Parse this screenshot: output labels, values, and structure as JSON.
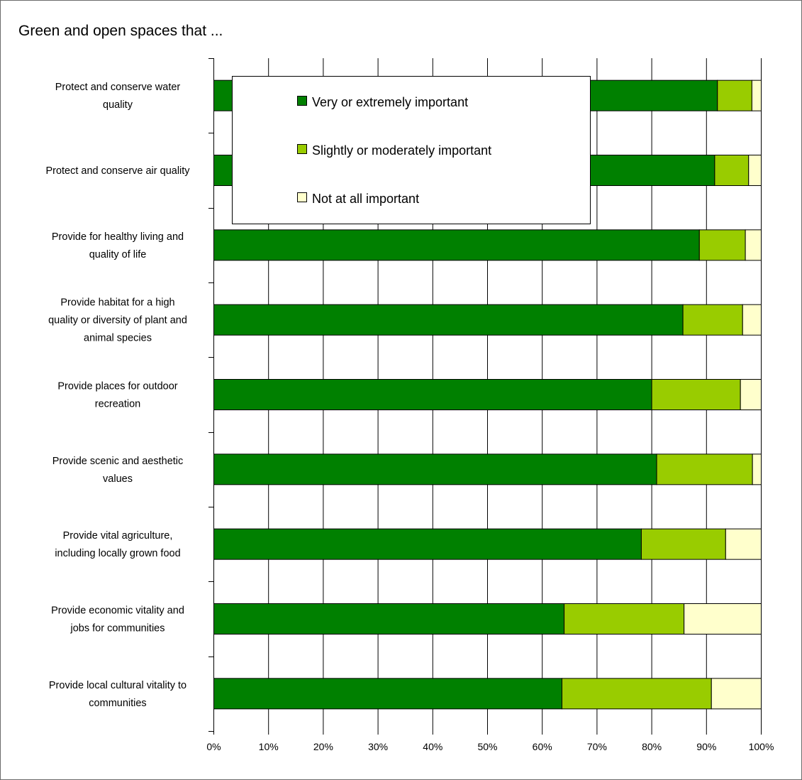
{
  "chart_data": {
    "type": "bar",
    "orientation": "horizontal",
    "stacked": "percent",
    "title": "Green and open spaces that ...",
    "xlabel": "",
    "ylabel": "",
    "xlim": [
      0,
      100
    ],
    "x_ticks": [
      "0%",
      "10%",
      "20%",
      "30%",
      "40%",
      "50%",
      "60%",
      "70%",
      "80%",
      "90%",
      "100%"
    ],
    "grid": "vertical",
    "legend_position": "inside-top-left",
    "categories": [
      [
        "Protect and conserve water",
        "quality"
      ],
      [
        "Protect and conserve air quality"
      ],
      [
        "Provide for healthy living and",
        "quality of life"
      ],
      [
        "Provide habitat for a high",
        "quality or diversity of plant and",
        "animal species"
      ],
      [
        "Provide places for outdoor",
        "recreation"
      ],
      [
        "Provide scenic and aesthetic",
        "values"
      ],
      [
        "Provide vital agriculture,",
        "including locally grown food"
      ],
      [
        "Provide economic vitality and",
        "jobs for communities"
      ],
      [
        "Provide local cultural vitality to",
        "communities"
      ]
    ],
    "series": [
      {
        "name": "Very or extremely important",
        "color": "#008000",
        "values": [
          92.0,
          91.5,
          88.7,
          85.7,
          80.0,
          80.9,
          78.1,
          64.0,
          63.6
        ]
      },
      {
        "name": "Slightly or moderately important",
        "color": "#99cc00",
        "values": [
          6.3,
          6.2,
          8.4,
          10.9,
          16.2,
          17.5,
          15.4,
          21.9,
          27.3
        ]
      },
      {
        "name": "Not at all important",
        "color": "#ffffcc",
        "values": [
          1.7,
          2.3,
          2.9,
          3.4,
          3.8,
          1.6,
          6.5,
          14.1,
          9.1
        ]
      }
    ]
  }
}
